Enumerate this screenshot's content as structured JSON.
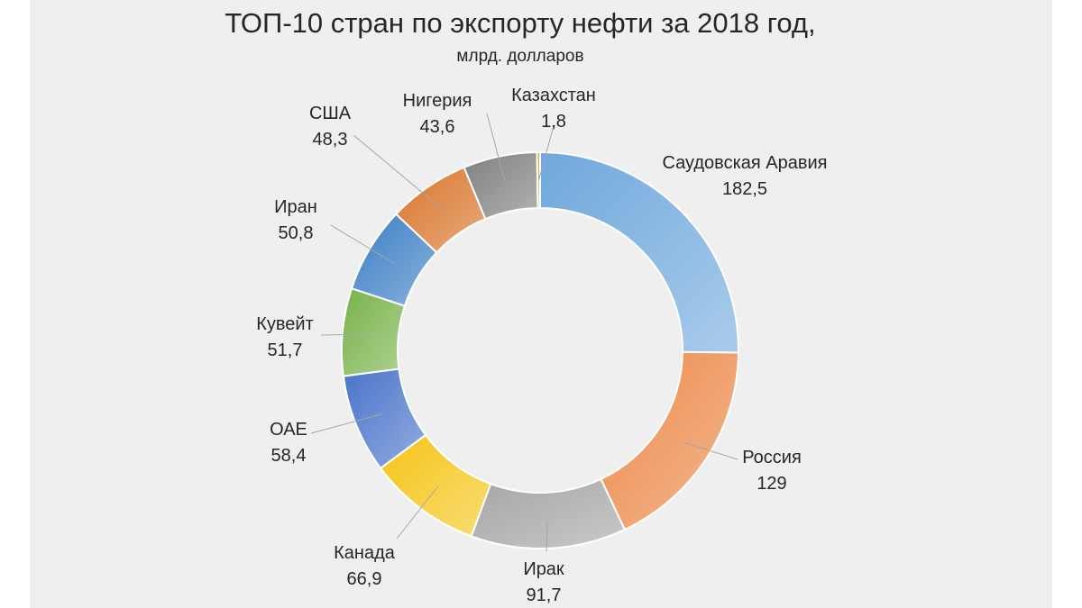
{
  "chart_data": {
    "type": "pie",
    "donut": true,
    "title": "ТОП-10 стран по экспорту нефти за 2018 год,",
    "subtitle": "млрд. долларов",
    "slices": [
      {
        "label": "Саудовская Аравия",
        "value_label": "182,5",
        "value": 182.5,
        "color": "#6fa8dc"
      },
      {
        "label": "Россия",
        "value_label": "129",
        "value": 129,
        "color": "#ec8a4a"
      },
      {
        "label": "Ирак",
        "value_label": "91,7",
        "value": 91.7,
        "color": "#a5a5a5"
      },
      {
        "label": "Канада",
        "value_label": "66,9",
        "value": 66.9,
        "color": "#f5c518"
      },
      {
        "label": "ОАЕ",
        "value_label": "58,4",
        "value": 58.4,
        "color": "#4a74c9"
      },
      {
        "label": "Кувейт",
        "value_label": "51,7",
        "value": 51.7,
        "color": "#78b24a"
      },
      {
        "label": "Иран",
        "value_label": "50,8",
        "value": 50.8,
        "color": "#3b7fc4"
      },
      {
        "label": "США",
        "value_label": "48,3",
        "value": 48.3,
        "color": "#d9742a"
      },
      {
        "label": "Нигерия",
        "value_label": "43,6",
        "value": 43.6,
        "color": "#7f7f7f"
      },
      {
        "label": "Казахстан",
        "value_label": "1,8",
        "value": 1.8,
        "color": "#c9a227"
      }
    ],
    "legend": "none"
  }
}
